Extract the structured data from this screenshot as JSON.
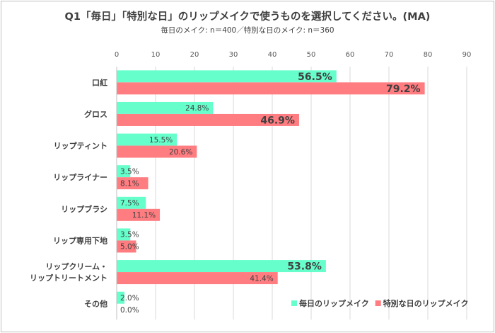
{
  "chart_data": {
    "type": "bar",
    "orientation": "horizontal",
    "title": "Q1「毎日」「特別な日」のリップメイクで使うものを選択してください。(MA)",
    "subtitle": "毎日のメイク: n＝400／特別な日のメイク: n＝360",
    "categories": [
      "口紅",
      "グロス",
      "リップティント",
      "リップライナー",
      "リップブラシ",
      "リップ専用下地",
      "リップクリーム・\nリップトリートメント",
      "その他"
    ],
    "xlim": [
      0,
      90
    ],
    "xticks": [
      "0",
      "10",
      "20",
      "30",
      "40",
      "50",
      "60",
      "70",
      "80",
      "90"
    ],
    "grid": true,
    "legend_position": "bottom-right",
    "series": [
      {
        "name": "毎日のリップメイク",
        "color": "#66FFCC",
        "values": [
          56.5,
          24.8,
          15.5,
          3.5,
          7.5,
          3.5,
          53.8,
          2.0
        ],
        "labels": [
          "56.5%",
          "24.8%",
          "15.5%",
          "3.5%",
          "7.5%",
          "3.5%",
          "53.8%",
          "2.0%"
        ],
        "emphasized": [
          true,
          false,
          false,
          false,
          false,
          false,
          true,
          false
        ]
      },
      {
        "name": "特別な日のリップメイク",
        "color": "#FF7C80",
        "values": [
          79.2,
          46.9,
          20.6,
          8.1,
          11.1,
          5.0,
          41.4,
          0.0
        ],
        "labels": [
          "79.2%",
          "46.9%",
          "20.6%",
          "8.1%",
          "11.1%",
          "5.0%",
          "41.4%",
          "0.0%"
        ],
        "emphasized": [
          true,
          true,
          false,
          false,
          false,
          false,
          false,
          false
        ]
      }
    ]
  }
}
